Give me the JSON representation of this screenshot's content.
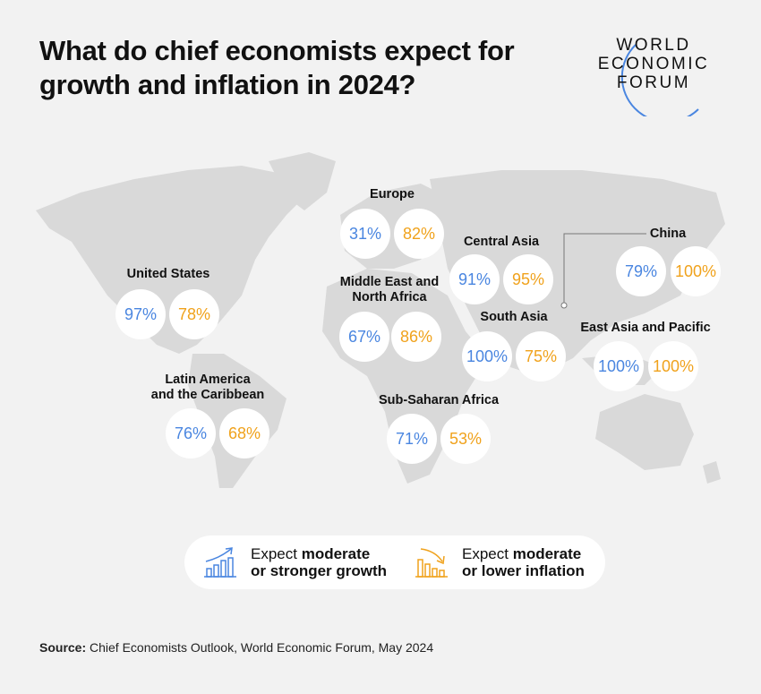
{
  "title": "What do chief economists expect for growth and inflation in 2024?",
  "logo": {
    "line1": "WORLD",
    "line2": "ECONOMIC",
    "line3": "FORUM"
  },
  "colors": {
    "growth": "#4a86e0",
    "inflation": "#f0a21c",
    "background": "#f2f2f2",
    "map": "#d9d9d9"
  },
  "regions": [
    {
      "name": "Europe",
      "growth": "31%",
      "inflation": "82%"
    },
    {
      "name": "Central Asia",
      "growth": "91%",
      "inflation": "95%"
    },
    {
      "name": "China",
      "growth": "79%",
      "inflation": "100%"
    },
    {
      "name": "United States",
      "growth": "97%",
      "inflation": "78%"
    },
    {
      "name": "Middle East and North Africa",
      "growth": "67%",
      "inflation": "86%"
    },
    {
      "name": "South Asia",
      "growth": "100%",
      "inflation": "75%"
    },
    {
      "name": "East Asia and Pacific",
      "growth": "100%",
      "inflation": "100%"
    },
    {
      "name": "Latin America and the Caribbean",
      "growth": "76%",
      "inflation": "68%"
    },
    {
      "name": "Sub-Saharan Africa",
      "growth": "71%",
      "inflation": "53%"
    }
  ],
  "region_label_lines": {
    "mena": [
      "Middle East and",
      "North Africa"
    ],
    "latam": [
      "Latin America",
      "and the Caribbean"
    ]
  },
  "legend": {
    "growth": {
      "icon": "rising-bar-chart-icon",
      "plain": "Expect ",
      "bold1": "moderate",
      "bold2": "or stronger growth"
    },
    "inflation": {
      "icon": "falling-bar-chart-icon",
      "plain": "Expect ",
      "bold1": "moderate",
      "bold2": "or lower inflation"
    }
  },
  "source": {
    "label": "Source:",
    "text": " Chief Economists Outlook, World Economic Forum, May 2024"
  }
}
